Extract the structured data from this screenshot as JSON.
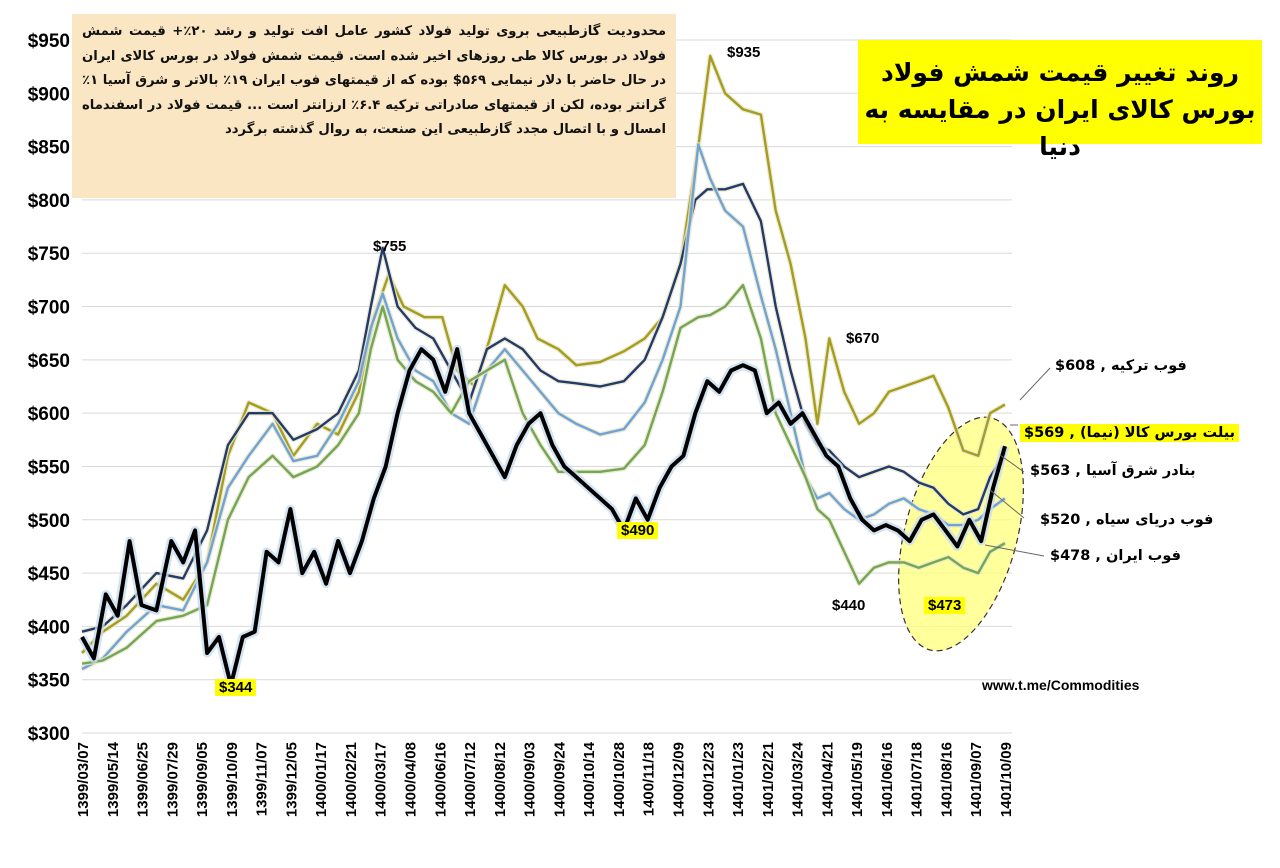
{
  "note_text": "محدودیت گازطبیعی بروی تولید فولاد کشور عامل افت تولید و رشد ۲۰٪+ قیمت شمش فولاد در بورس کالا طی روزهای اخیر شده است. قیمت شمش فولاد در بورس کالای ایران در حال حاضر با دلار نیمایی ۵۶۹$ بوده که از قیمتهای فوب ایران ۱۹٪ بالاتر و شرق آسیا ۱٪ گرانتر بوده، لکن از قیمتهای صادراتی ترکیه ۶.۴٪ ارزانتر است ... قیمت فولاد در اسفندماه امسال و با اتصال مجدد گازطبیعی این صنعت، به روال گذشته برگردد",
  "title": "روند تغییر قیمت شمش فولاد بورس کالای ایران در مقایسه به دنیا",
  "watermark": "www.t.me/Commodities",
  "legend": {
    "turkey": "فوب ترکیه ,  608$",
    "ime": "بیلت بورس کالا (نیما) ,  569$",
    "east_asia": "بنادر شرق آسیا ,  563$",
    "black_sea": "فوب دریای سیاه ,  520$",
    "iran": "فوب ایران ,  478$"
  },
  "annotations": {
    "a935": "$935",
    "a755": "$755",
    "a670": "$670",
    "a490": "$490",
    "a440": "$440",
    "a473": "$473",
    "a344": "$344"
  },
  "colors": {
    "turkey": "#a59d20",
    "ime": "#000000",
    "east_asia": "#233a6b",
    "black_sea": "#6fa3d6",
    "iran": "#73a657",
    "highlight": "#ffff00",
    "note_bg": "#fbe6c3"
  },
  "chart_data": {
    "type": "line",
    "x_ticks": [
      "1399/03/07",
      "1399/05/14",
      "1399/06/25",
      "1399/07/29",
      "1399/09/05",
      "1399/10/09",
      "1399/11/07",
      "1399/12/05",
      "1400/01/17",
      "1400/02/21",
      "1400/03/17",
      "1400/04/08",
      "1400/06/16",
      "1400/07/12",
      "1400/08/12",
      "1400/09/03",
      "1400/09/24",
      "1400/10/14",
      "1400/10/28",
      "1400/11/18",
      "1400/12/09",
      "1400/12/23",
      "1401/01/23",
      "1401/02/21",
      "1401/03/24",
      "1401/04/21",
      "1401/05/19",
      "1401/06/16",
      "1401/07/18",
      "1401/08/16",
      "1401/09/07",
      "1401/10/09"
    ],
    "y_ticks": [
      "$300",
      "$350",
      "$400",
      "$450",
      "$500",
      "$550",
      "$600",
      "$650",
      "$700",
      "$750",
      "$800",
      "$850",
      "$900",
      "$950"
    ],
    "ylim": [
      300,
      960
    ],
    "grid": "horizontal",
    "legend_position": "right",
    "series": [
      {
        "name": "فوب ترکیه",
        "color": "#a59d20",
        "values": [
          [
            0,
            375
          ],
          [
            0.7,
            395
          ],
          [
            1.5,
            410
          ],
          [
            2.5,
            440
          ],
          [
            3.4,
            425
          ],
          [
            4.2,
            460
          ],
          [
            4.9,
            560
          ],
          [
            5.6,
            610
          ],
          [
            6.4,
            600
          ],
          [
            7.1,
            560
          ],
          [
            7.9,
            590
          ],
          [
            8.6,
            580
          ],
          [
            9.3,
            620
          ],
          [
            9.8,
            690
          ],
          [
            10.3,
            730
          ],
          [
            10.8,
            700
          ],
          [
            11.5,
            690
          ],
          [
            12.1,
            690
          ],
          [
            12.6,
            640
          ],
          [
            13.2,
            625
          ],
          [
            13.7,
            670
          ],
          [
            14.2,
            720
          ],
          [
            14.8,
            700
          ],
          [
            15.3,
            670
          ],
          [
            16,
            660
          ],
          [
            16.6,
            645
          ],
          [
            17.4,
            648
          ],
          [
            18.2,
            658
          ],
          [
            18.9,
            670
          ],
          [
            19.5,
            690
          ],
          [
            20.1,
            740
          ],
          [
            20.7,
            850
          ],
          [
            21.1,
            935
          ],
          [
            21.6,
            900
          ],
          [
            22.2,
            885
          ],
          [
            22.8,
            880
          ],
          [
            23.3,
            790
          ],
          [
            23.8,
            740
          ],
          [
            24.3,
            670
          ],
          [
            24.7,
            590
          ],
          [
            25.1,
            670
          ],
          [
            25.6,
            620
          ],
          [
            26.1,
            590
          ],
          [
            26.6,
            600
          ],
          [
            27.1,
            620
          ],
          [
            27.6,
            625
          ],
          [
            28.1,
            630
          ],
          [
            28.6,
            635
          ],
          [
            29.1,
            605
          ],
          [
            29.6,
            565
          ],
          [
            30.1,
            560
          ],
          [
            30.5,
            600
          ],
          [
            31,
            608
          ]
        ]
      },
      {
        "name": "بنادر شرق آسیا",
        "color": "#233a6b",
        "values": [
          [
            0,
            395
          ],
          [
            0.7,
            400
          ],
          [
            1.5,
            420
          ],
          [
            2.5,
            450
          ],
          [
            3.4,
            445
          ],
          [
            4.2,
            490
          ],
          [
            4.9,
            570
          ],
          [
            5.6,
            600
          ],
          [
            6.4,
            600
          ],
          [
            7.1,
            575
          ],
          [
            7.9,
            585
          ],
          [
            8.6,
            600
          ],
          [
            9.3,
            640
          ],
          [
            9.7,
            700
          ],
          [
            10.1,
            755
          ],
          [
            10.6,
            700
          ],
          [
            11.2,
            680
          ],
          [
            11.8,
            670
          ],
          [
            12.4,
            640
          ],
          [
            13,
            610
          ],
          [
            13.6,
            660
          ],
          [
            14.2,
            670
          ],
          [
            14.8,
            660
          ],
          [
            15.4,
            640
          ],
          [
            16,
            630
          ],
          [
            16.6,
            628
          ],
          [
            17.4,
            625
          ],
          [
            18.2,
            630
          ],
          [
            18.9,
            650
          ],
          [
            19.5,
            690
          ],
          [
            20.1,
            740
          ],
          [
            20.6,
            800
          ],
          [
            21,
            810
          ],
          [
            21.6,
            810
          ],
          [
            22.2,
            815
          ],
          [
            22.8,
            780
          ],
          [
            23.3,
            700
          ],
          [
            23.8,
            640
          ],
          [
            24.3,
            590
          ],
          [
            24.7,
            570
          ],
          [
            25.1,
            565
          ],
          [
            25.6,
            550
          ],
          [
            26.1,
            540
          ],
          [
            26.6,
            545
          ],
          [
            27.1,
            550
          ],
          [
            27.6,
            545
          ],
          [
            28.1,
            535
          ],
          [
            28.6,
            530
          ],
          [
            29.1,
            515
          ],
          [
            29.6,
            505
          ],
          [
            30.1,
            510
          ],
          [
            30.5,
            540
          ],
          [
            31,
            563
          ]
        ]
      },
      {
        "name": "فوب دریای سیاه",
        "color": "#6fa3d6",
        "values": [
          [
            0,
            360
          ],
          [
            0.7,
            370
          ],
          [
            1.5,
            395
          ],
          [
            2.5,
            420
          ],
          [
            3.4,
            415
          ],
          [
            4.2,
            460
          ],
          [
            4.9,
            530
          ],
          [
            5.6,
            560
          ],
          [
            6.4,
            590
          ],
          [
            7.1,
            555
          ],
          [
            7.9,
            560
          ],
          [
            8.6,
            590
          ],
          [
            9.3,
            630
          ],
          [
            9.7,
            680
          ],
          [
            10.1,
            712
          ],
          [
            10.6,
            670
          ],
          [
            11.2,
            640
          ],
          [
            11.8,
            630
          ],
          [
            12.4,
            600
          ],
          [
            13,
            590
          ],
          [
            13.6,
            640
          ],
          [
            14.2,
            660
          ],
          [
            14.8,
            640
          ],
          [
            15.4,
            620
          ],
          [
            16,
            600
          ],
          [
            16.6,
            590
          ],
          [
            17.4,
            580
          ],
          [
            18.2,
            585
          ],
          [
            18.9,
            610
          ],
          [
            19.5,
            650
          ],
          [
            20.1,
            700
          ],
          [
            20.7,
            852
          ],
          [
            21.1,
            820
          ],
          [
            21.6,
            790
          ],
          [
            22.2,
            775
          ],
          [
            22.8,
            710
          ],
          [
            23.3,
            660
          ],
          [
            23.8,
            600
          ],
          [
            24.3,
            540
          ],
          [
            24.7,
            520
          ],
          [
            25.1,
            525
          ],
          [
            25.6,
            510
          ],
          [
            26.1,
            500
          ],
          [
            26.6,
            505
          ],
          [
            27.1,
            515
          ],
          [
            27.6,
            520
          ],
          [
            28.1,
            510
          ],
          [
            28.6,
            505
          ],
          [
            29.1,
            495
          ],
          [
            29.6,
            495
          ],
          [
            30.1,
            500
          ],
          [
            30.5,
            510
          ],
          [
            31,
            520
          ]
        ]
      },
      {
        "name": "فوب ایران",
        "color": "#73a657",
        "values": [
          [
            0,
            365
          ],
          [
            0.7,
            368
          ],
          [
            1.5,
            380
          ],
          [
            2.5,
            405
          ],
          [
            3.4,
            410
          ],
          [
            4.2,
            420
          ],
          [
            4.9,
            500
          ],
          [
            5.6,
            540
          ],
          [
            6.4,
            560
          ],
          [
            7.1,
            540
          ],
          [
            7.9,
            550
          ],
          [
            8.6,
            570
          ],
          [
            9.3,
            600
          ],
          [
            9.7,
            660
          ],
          [
            10.1,
            700
          ],
          [
            10.6,
            650
          ],
          [
            11.2,
            630
          ],
          [
            11.8,
            620
          ],
          [
            12.4,
            600
          ],
          [
            13,
            630
          ],
          [
            13.6,
            640
          ],
          [
            14.2,
            650
          ],
          [
            14.8,
            600
          ],
          [
            15.4,
            570
          ],
          [
            16,
            545
          ],
          [
            16.6,
            545
          ],
          [
            17.4,
            545
          ],
          [
            18.2,
            548
          ],
          [
            18.9,
            570
          ],
          [
            19.5,
            620
          ],
          [
            20.1,
            680
          ],
          [
            20.7,
            690
          ],
          [
            21.1,
            692
          ],
          [
            21.6,
            700
          ],
          [
            22.2,
            720
          ],
          [
            22.8,
            670
          ],
          [
            23.3,
            600
          ],
          [
            23.8,
            570
          ],
          [
            24.3,
            540
          ],
          [
            24.7,
            510
          ],
          [
            25.1,
            500
          ],
          [
            25.6,
            470
          ],
          [
            26.1,
            440
          ],
          [
            26.6,
            455
          ],
          [
            27.1,
            460
          ],
          [
            27.6,
            460
          ],
          [
            28.1,
            455
          ],
          [
            28.6,
            460
          ],
          [
            29.1,
            465
          ],
          [
            29.6,
            455
          ],
          [
            30.1,
            450
          ],
          [
            30.5,
            470
          ],
          [
            31,
            478
          ]
        ]
      },
      {
        "name": "بیلت بورس کالا (نیما)",
        "color": "#000000",
        "values": [
          [
            0,
            390
          ],
          [
            0.4,
            370
          ],
          [
            0.8,
            430
          ],
          [
            1.2,
            410
          ],
          [
            1.6,
            480
          ],
          [
            2,
            420
          ],
          [
            2.5,
            415
          ],
          [
            3,
            480
          ],
          [
            3.4,
            460
          ],
          [
            3.8,
            490
          ],
          [
            4.2,
            375
          ],
          [
            4.6,
            390
          ],
          [
            5,
            345
          ],
          [
            5.4,
            390
          ],
          [
            5.8,
            395
          ],
          [
            6.2,
            470
          ],
          [
            6.6,
            460
          ],
          [
            7,
            510
          ],
          [
            7.4,
            450
          ],
          [
            7.8,
            470
          ],
          [
            8.2,
            440
          ],
          [
            8.6,
            480
          ],
          [
            9,
            450
          ],
          [
            9.4,
            480
          ],
          [
            9.8,
            520
          ],
          [
            10.2,
            550
          ],
          [
            10.6,
            600
          ],
          [
            11,
            640
          ],
          [
            11.4,
            660
          ],
          [
            11.8,
            650
          ],
          [
            12.2,
            620
          ],
          [
            12.6,
            660
          ],
          [
            13,
            600
          ],
          [
            13.4,
            580
          ],
          [
            13.8,
            560
          ],
          [
            14.2,
            540
          ],
          [
            14.6,
            570
          ],
          [
            15,
            590
          ],
          [
            15.4,
            600
          ],
          [
            15.8,
            570
          ],
          [
            16.2,
            550
          ],
          [
            16.6,
            540
          ],
          [
            17,
            530
          ],
          [
            17.4,
            520
          ],
          [
            17.8,
            510
          ],
          [
            18.2,
            490
          ],
          [
            18.6,
            520
          ],
          [
            19,
            500
          ],
          [
            19.4,
            530
          ],
          [
            19.8,
            550
          ],
          [
            20.2,
            560
          ],
          [
            20.6,
            600
          ],
          [
            21,
            630
          ],
          [
            21.4,
            620
          ],
          [
            21.8,
            640
          ],
          [
            22.2,
            645
          ],
          [
            22.6,
            640
          ],
          [
            23,
            600
          ],
          [
            23.4,
            610
          ],
          [
            23.8,
            590
          ],
          [
            24.2,
            600
          ],
          [
            24.6,
            580
          ],
          [
            25,
            560
          ],
          [
            25.4,
            550
          ],
          [
            25.8,
            520
          ],
          [
            26.2,
            500
          ],
          [
            26.6,
            490
          ],
          [
            27,
            495
          ],
          [
            27.4,
            490
          ],
          [
            27.8,
            480
          ],
          [
            28.2,
            500
          ],
          [
            28.6,
            505
          ],
          [
            29,
            490
          ],
          [
            29.4,
            475
          ],
          [
            29.8,
            500
          ],
          [
            30.2,
            480
          ],
          [
            30.6,
            530
          ],
          [
            31,
            569
          ]
        ]
      }
    ]
  }
}
